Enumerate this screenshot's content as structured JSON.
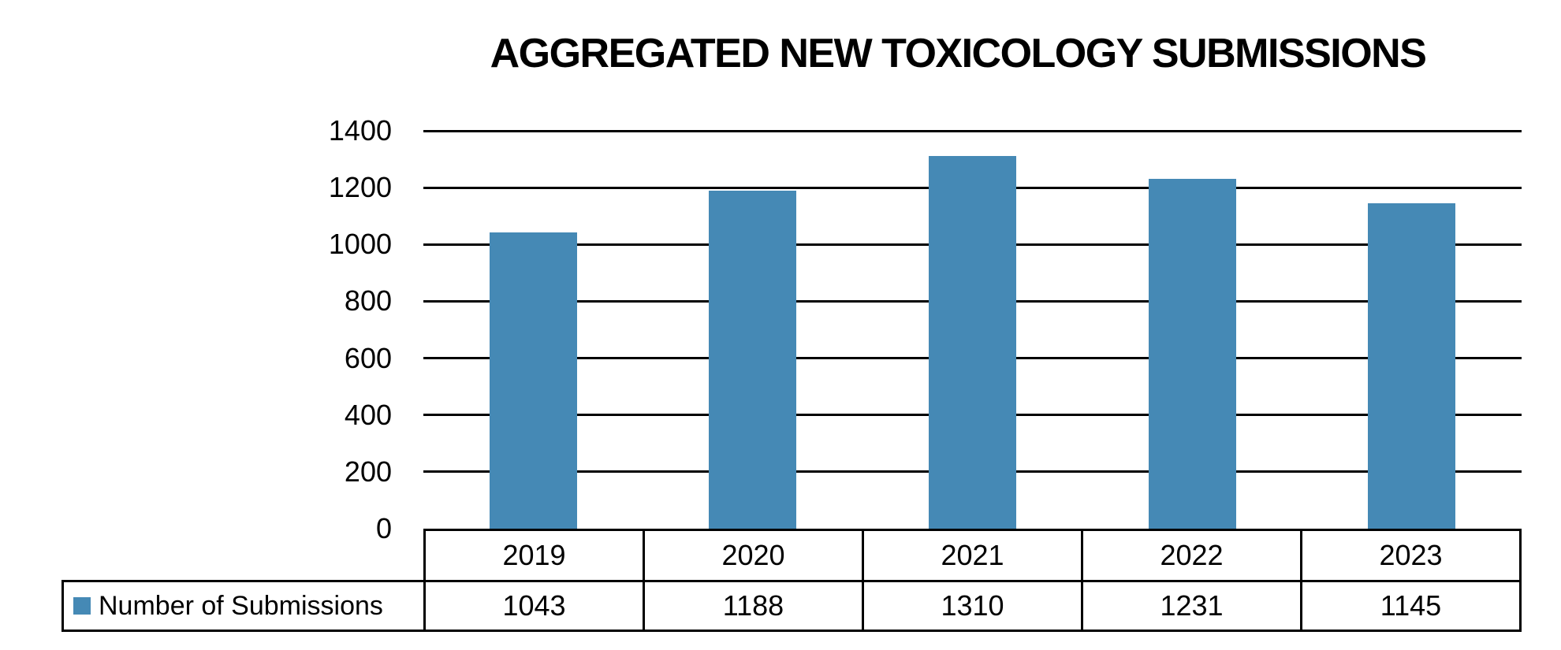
{
  "chart_data": {
    "type": "bar",
    "title": "AGGREGATED NEW TOXICOLOGY SUBMISSIONS",
    "categories": [
      "2019",
      "2020",
      "2021",
      "2022",
      "2023"
    ],
    "series": [
      {
        "name": "Number of Submissions",
        "values": [
          1043,
          1188,
          1310,
          1231,
          1145
        ]
      }
    ],
    "value_labels": [
      "1043",
      "1188",
      "1310",
      "1231",
      "1145"
    ],
    "xlabel": "",
    "ylabel": "",
    "ylim": [
      0,
      1400
    ],
    "ytick_interval": 200,
    "ytick_labels": [
      "1400",
      "1200",
      "1000",
      "800",
      "600",
      "400",
      "200",
      "0"
    ],
    "grid": "horizontal",
    "gridline_color": "#000000",
    "legend_position": "bottom-left",
    "data_table_shown": true,
    "bar_color": "#4589b5",
    "text_color": "#000000",
    "background_color": "#ffffff"
  }
}
